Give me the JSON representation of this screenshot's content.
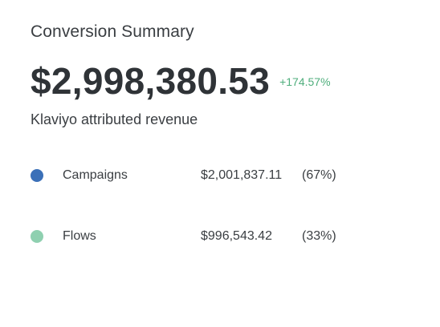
{
  "summary": {
    "title": "Conversion Summary",
    "total_revenue": "$2,998,380.53",
    "change": "+174.57%",
    "subtitle": "Klaviyo attributed revenue"
  },
  "breakdown": [
    {
      "label": "Campaigns",
      "amount": "$2,001,837.11",
      "percent": "(67%)",
      "color": "#3b70b8"
    },
    {
      "label": "Flows",
      "amount": "$996,543.42",
      "percent": "(33%)",
      "color": "#8fd0b0"
    }
  ],
  "colors": {
    "accent_positive": "#4fae7c",
    "text": "#2f3337"
  }
}
